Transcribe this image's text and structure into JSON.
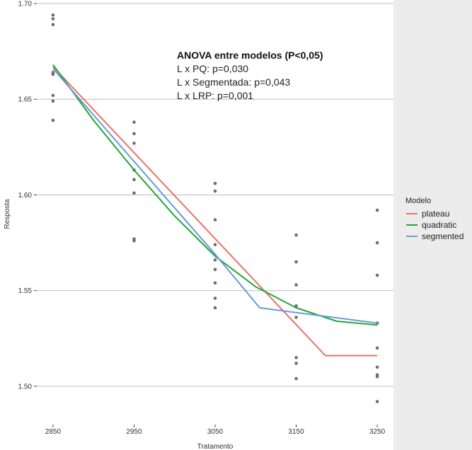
{
  "chart_data": {
    "type": "scatter",
    "title": "",
    "xlabel": "Tratamento",
    "ylabel": "Resposta",
    "x_ticks": [
      2850,
      2950,
      3050,
      3150,
      3250
    ],
    "x_tick_labels": [
      "2850",
      "2950",
      "3050",
      "3150",
      "3250"
    ],
    "y_ticks": [
      1.5,
      1.55,
      1.6,
      1.65,
      1.7
    ],
    "y_tick_labels": [
      "1.50",
      "1.55",
      "1.60",
      "1.65",
      "1.70"
    ],
    "xlim": [
      2830,
      3270
    ],
    "ylim": [
      1.48,
      1.7
    ],
    "grid": "horizontal",
    "panel_background": "#ffffff",
    "gridline_color": "#bdbdbd",
    "point_color": "#6e6e6e",
    "observations": [
      {
        "x": 2850,
        "y": [
          1.694,
          1.692,
          1.689,
          1.664,
          1.663,
          1.652,
          1.649,
          1.639
        ]
      },
      {
        "x": 2950,
        "y": [
          1.638,
          1.632,
          1.627,
          1.613,
          1.608,
          1.601,
          1.577,
          1.576
        ]
      },
      {
        "x": 3050,
        "y": [
          1.606,
          1.602,
          1.587,
          1.574,
          1.566,
          1.561,
          1.554,
          1.546,
          1.541
        ]
      },
      {
        "x": 3150,
        "y": [
          1.579,
          1.565,
          1.553,
          1.542,
          1.536,
          1.515,
          1.512,
          1.504
        ]
      },
      {
        "x": 3250,
        "y": [
          1.592,
          1.575,
          1.558,
          1.533,
          1.52,
          1.51,
          1.506,
          1.505,
          1.492
        ]
      }
    ],
    "series": [
      {
        "name": "plateau",
        "color": "#e8746b",
        "points": [
          [
            2850,
            1.667
          ],
          [
            3186,
            1.516
          ],
          [
            3250,
            1.516
          ]
        ]
      },
      {
        "name": "quadratic",
        "color": "#22a838",
        "points": [
          [
            2850,
            1.668
          ],
          [
            2900,
            1.639
          ],
          [
            2950,
            1.613
          ],
          [
            3000,
            1.589
          ],
          [
            3050,
            1.568
          ],
          [
            3100,
            1.552
          ],
          [
            3150,
            1.541
          ],
          [
            3200,
            1.534
          ],
          [
            3250,
            1.532
          ]
        ]
      },
      {
        "name": "segmented",
        "color": "#6a9ad8",
        "points": [
          [
            2850,
            1.666
          ],
          [
            3050,
            1.569
          ],
          [
            3105,
            1.541
          ],
          [
            3250,
            1.533
          ]
        ]
      }
    ],
    "legend": {
      "title": "Modelo",
      "position": "right",
      "entries": [
        "plateau",
        "quadratic",
        "segmented"
      ]
    },
    "annotation": {
      "title": "ANOVA entre modelos (P<0,05)",
      "lines": [
        "L x PQ: p=0,030",
        "L x Segmentada: p=0,043",
        "L x LRP: p=0,001"
      ]
    }
  }
}
